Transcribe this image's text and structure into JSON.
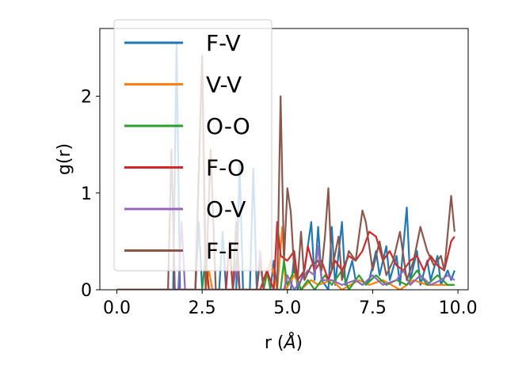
{
  "chart_data": {
    "type": "line",
    "xlabel": "r (",
    "xlabel_unit": "Å",
    "xlabel_close": ")",
    "ylabel": "g(r)",
    "xlim": [
      -0.5,
      10.3
    ],
    "ylim": [
      0,
      2.7
    ],
    "x_ticks": [
      0.0,
      2.5,
      5.0,
      7.5,
      10.0
    ],
    "x_tick_labels": [
      "0.0",
      "2.5",
      "5.0",
      "7.5",
      "10.0"
    ],
    "y_ticks": [
      0,
      1,
      2
    ],
    "y_tick_labels": [
      "0",
      "1",
      "2"
    ],
    "grid": false,
    "legend_position": "upper-left",
    "series": [
      {
        "name": "F-V",
        "color": "#1f77b4",
        "points": [
          [
            0,
            0
          ],
          [
            1.5,
            0
          ],
          [
            1.65,
            0
          ],
          [
            1.75,
            2.55
          ],
          [
            1.85,
            0
          ],
          [
            2.3,
            0
          ],
          [
            2.4,
            0.7
          ],
          [
            2.5,
            0
          ],
          [
            3.0,
            0
          ],
          [
            3.1,
            0.6
          ],
          [
            3.2,
            0
          ],
          [
            3.5,
            0
          ],
          [
            3.6,
            1.3
          ],
          [
            3.7,
            0
          ],
          [
            3.9,
            0
          ],
          [
            4.0,
            1.25
          ],
          [
            4.1,
            0
          ],
          [
            4.5,
            0
          ],
          [
            4.6,
            0.3
          ],
          [
            4.7,
            0
          ],
          [
            5.1,
            0
          ],
          [
            5.2,
            0.35
          ],
          [
            5.3,
            0
          ],
          [
            5.5,
            0.2
          ],
          [
            5.7,
            0.7
          ],
          [
            5.8,
            0.1
          ],
          [
            5.9,
            0.65
          ],
          [
            6.0,
            0.1
          ],
          [
            6.2,
            0
          ],
          [
            6.3,
            0.65
          ],
          [
            6.4,
            0.05
          ],
          [
            6.6,
            0.7
          ],
          [
            6.7,
            0.05
          ],
          [
            6.9,
            0.3
          ],
          [
            7.0,
            0.1
          ],
          [
            7.2,
            0.05
          ],
          [
            7.4,
            0.1
          ],
          [
            7.6,
            0.4
          ],
          [
            7.7,
            0.15
          ],
          [
            7.9,
            0.45
          ],
          [
            8.0,
            0.1
          ],
          [
            8.2,
            0.35
          ],
          [
            8.3,
            0.05
          ],
          [
            8.5,
            0.85
          ],
          [
            8.6,
            0.1
          ],
          [
            8.8,
            0.4
          ],
          [
            8.9,
            0.05
          ],
          [
            9.1,
            0.3
          ],
          [
            9.2,
            0.1
          ],
          [
            9.4,
            0.35
          ],
          [
            9.5,
            0.05
          ],
          [
            9.7,
            0.2
          ],
          [
            9.8,
            0.1
          ],
          [
            9.9,
            0.2
          ]
        ]
      },
      {
        "name": "V-V",
        "color": "#ff7f0e",
        "points": [
          [
            0,
            0
          ],
          [
            2.6,
            0
          ],
          [
            2.7,
            0.2
          ],
          [
            2.8,
            0
          ],
          [
            4.3,
            0
          ],
          [
            4.5,
            0.3
          ],
          [
            4.7,
            0
          ],
          [
            4.85,
            0.65
          ],
          [
            4.95,
            0
          ],
          [
            5.2,
            0.15
          ],
          [
            5.4,
            0
          ],
          [
            5.7,
            0.1
          ],
          [
            5.9,
            0.05
          ],
          [
            6.3,
            0.1
          ],
          [
            6.6,
            0
          ],
          [
            7.1,
            0.1
          ],
          [
            7.4,
            0.05
          ],
          [
            7.8,
            0.1
          ],
          [
            8.3,
            0
          ],
          [
            8.7,
            0.1
          ],
          [
            9.1,
            0.05
          ],
          [
            9.5,
            0.05
          ],
          [
            9.9,
            0.05
          ]
        ]
      },
      {
        "name": "O-O",
        "color": "#2ca02c",
        "points": [
          [
            0,
            0
          ],
          [
            2.5,
            0
          ],
          [
            2.6,
            0.35
          ],
          [
            2.7,
            0
          ],
          [
            3.4,
            0
          ],
          [
            3.5,
            0.3
          ],
          [
            3.6,
            0
          ],
          [
            4.3,
            0
          ],
          [
            4.4,
            0.2
          ],
          [
            4.5,
            0
          ],
          [
            4.8,
            0
          ],
          [
            4.9,
            0.3
          ],
          [
            5.0,
            0.05
          ],
          [
            5.2,
            0.2
          ],
          [
            5.4,
            0
          ],
          [
            5.6,
            0.1
          ],
          [
            5.8,
            0
          ],
          [
            6.1,
            0.15
          ],
          [
            6.3,
            0.05
          ],
          [
            6.6,
            0.2
          ],
          [
            6.8,
            0
          ],
          [
            7.1,
            0.15
          ],
          [
            7.3,
            0.05
          ],
          [
            7.6,
            0.15
          ],
          [
            7.9,
            0.05
          ],
          [
            8.2,
            0.1
          ],
          [
            8.5,
            0.05
          ],
          [
            8.8,
            0.2
          ],
          [
            9.1,
            0.05
          ],
          [
            9.4,
            0.15
          ],
          [
            9.7,
            0.05
          ],
          [
            9.9,
            0.05
          ]
        ]
      },
      {
        "name": "F-O",
        "color": "#d62728",
        "points": [
          [
            0,
            0
          ],
          [
            2.3,
            0
          ],
          [
            2.5,
            2.4
          ],
          [
            2.6,
            0.3
          ],
          [
            2.7,
            0
          ],
          [
            3.2,
            0
          ],
          [
            3.3,
            0.5
          ],
          [
            3.4,
            0
          ],
          [
            4.2,
            0
          ],
          [
            4.4,
            0.2
          ],
          [
            4.6,
            0
          ],
          [
            4.7,
            0.7
          ],
          [
            4.8,
            0.35
          ],
          [
            5.0,
            0.3
          ],
          [
            5.2,
            0.4
          ],
          [
            5.3,
            0.1
          ],
          [
            5.5,
            0.2
          ],
          [
            5.6,
            0.45
          ],
          [
            5.8,
            0.2
          ],
          [
            6.0,
            0.3
          ],
          [
            6.2,
            0.1
          ],
          [
            6.4,
            0.3
          ],
          [
            6.6,
            0.2
          ],
          [
            6.8,
            0.35
          ],
          [
            7.0,
            0.3
          ],
          [
            7.2,
            0.4
          ],
          [
            7.4,
            0.6
          ],
          [
            7.6,
            0.55
          ],
          [
            7.8,
            0.3
          ],
          [
            8.0,
            0.4
          ],
          [
            8.2,
            0.25
          ],
          [
            8.4,
            0.2
          ],
          [
            8.6,
            0.3
          ],
          [
            8.8,
            0.35
          ],
          [
            9.0,
            0.2
          ],
          [
            9.2,
            0.35
          ],
          [
            9.4,
            0.25
          ],
          [
            9.6,
            0.2
          ],
          [
            9.8,
            0.5
          ],
          [
            9.9,
            0.55
          ]
        ]
      },
      {
        "name": "O-V",
        "color": "#9467bd",
        "points": [
          [
            0,
            0
          ],
          [
            1.8,
            0
          ],
          [
            1.9,
            0.7
          ],
          [
            2.0,
            0
          ],
          [
            3.4,
            0
          ],
          [
            3.5,
            0.25
          ],
          [
            3.6,
            0
          ],
          [
            4.1,
            0
          ],
          [
            4.2,
            0.4
          ],
          [
            4.3,
            0
          ],
          [
            4.9,
            0
          ],
          [
            5.0,
            0.15
          ],
          [
            5.2,
            0
          ],
          [
            5.6,
            0.2
          ],
          [
            5.8,
            0.15
          ],
          [
            5.9,
            0.45
          ],
          [
            6.0,
            0.1
          ],
          [
            6.3,
            0.1
          ],
          [
            6.6,
            0.05
          ],
          [
            7.0,
            0.1
          ],
          [
            7.2,
            0.05
          ],
          [
            7.5,
            0.15
          ],
          [
            7.8,
            0.05
          ],
          [
            8.2,
            0.1
          ],
          [
            8.4,
            0.2
          ],
          [
            8.6,
            0.05
          ],
          [
            8.9,
            0.15
          ],
          [
            9.2,
            0.05
          ],
          [
            9.5,
            0.1
          ],
          [
            9.7,
            0.15
          ],
          [
            9.9,
            0.1
          ]
        ]
      },
      {
        "name": "F-F",
        "color": "#8c564b",
        "points": [
          [
            0,
            0
          ],
          [
            1.5,
            0
          ],
          [
            1.6,
            1.45
          ],
          [
            1.7,
            0
          ],
          [
            2.3,
            0
          ],
          [
            2.5,
            2.42
          ],
          [
            2.6,
            0
          ],
          [
            2.75,
            1.45
          ],
          [
            2.9,
            0
          ],
          [
            3.4,
            0
          ],
          [
            3.5,
            0.7
          ],
          [
            3.6,
            0
          ],
          [
            4.1,
            0
          ],
          [
            4.2,
            0.3
          ],
          [
            4.3,
            0
          ],
          [
            4.7,
            0
          ],
          [
            4.8,
            2.0
          ],
          [
            4.9,
            0.3
          ],
          [
            5.0,
            1.05
          ],
          [
            5.1,
            0.8
          ],
          [
            5.2,
            0.2
          ],
          [
            5.3,
            0.1
          ],
          [
            5.4,
            0.6
          ],
          [
            5.5,
            0.1
          ],
          [
            5.7,
            0.25
          ],
          [
            5.9,
            0.3
          ],
          [
            6.0,
            0.2
          ],
          [
            6.1,
            0.55
          ],
          [
            6.2,
            1.05
          ],
          [
            6.3,
            0.2
          ],
          [
            6.5,
            0.55
          ],
          [
            6.6,
            0.1
          ],
          [
            6.8,
            0.4
          ],
          [
            7.0,
            0.3
          ],
          [
            7.2,
            0.82
          ],
          [
            7.3,
            0.7
          ],
          [
            7.5,
            0.2
          ],
          [
            7.7,
            0.5
          ],
          [
            7.9,
            0.15
          ],
          [
            8.1,
            0.3
          ],
          [
            8.3,
            0.6
          ],
          [
            8.5,
            0.1
          ],
          [
            8.7,
            0.3
          ],
          [
            8.9,
            0.65
          ],
          [
            9.1,
            0.4
          ],
          [
            9.3,
            0.25
          ],
          [
            9.5,
            0.35
          ],
          [
            9.6,
            0.2
          ],
          [
            9.8,
            0.97
          ],
          [
            9.9,
            0.6
          ]
        ]
      }
    ]
  }
}
